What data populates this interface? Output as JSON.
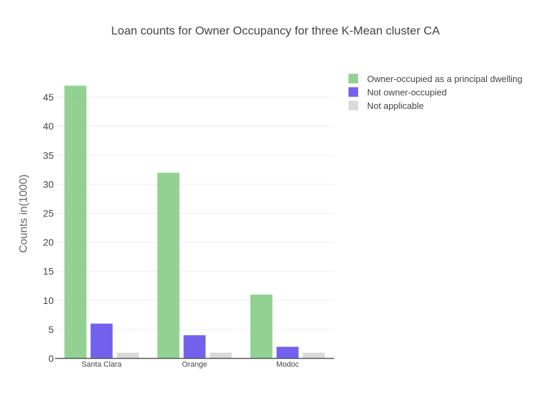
{
  "chart_data": {
    "type": "bar",
    "title": "Loan counts for Owner Occupancy for three K-Mean cluster CA",
    "xlabel": "",
    "ylabel": "Counts in(1000)",
    "categories": [
      "Santa Clara",
      "Orange",
      "Modoc"
    ],
    "series": [
      {
        "name": "Owner-occupied as a principal dwelling",
        "values": [
          47,
          32,
          11
        ],
        "color": "#7fc97f"
      },
      {
        "name": "Not owner-occupied",
        "values": [
          6,
          4,
          2
        ],
        "color": "#5b45ea"
      },
      {
        "name": "Not applicable",
        "values": [
          1,
          1,
          1
        ],
        "color": "#d3d3d3"
      }
    ],
    "ylim": [
      0,
      48.7
    ],
    "yticks": [
      0,
      5,
      10,
      15,
      20,
      25,
      30,
      35,
      40,
      45
    ],
    "grid": true,
    "legend_position": "top-right"
  }
}
